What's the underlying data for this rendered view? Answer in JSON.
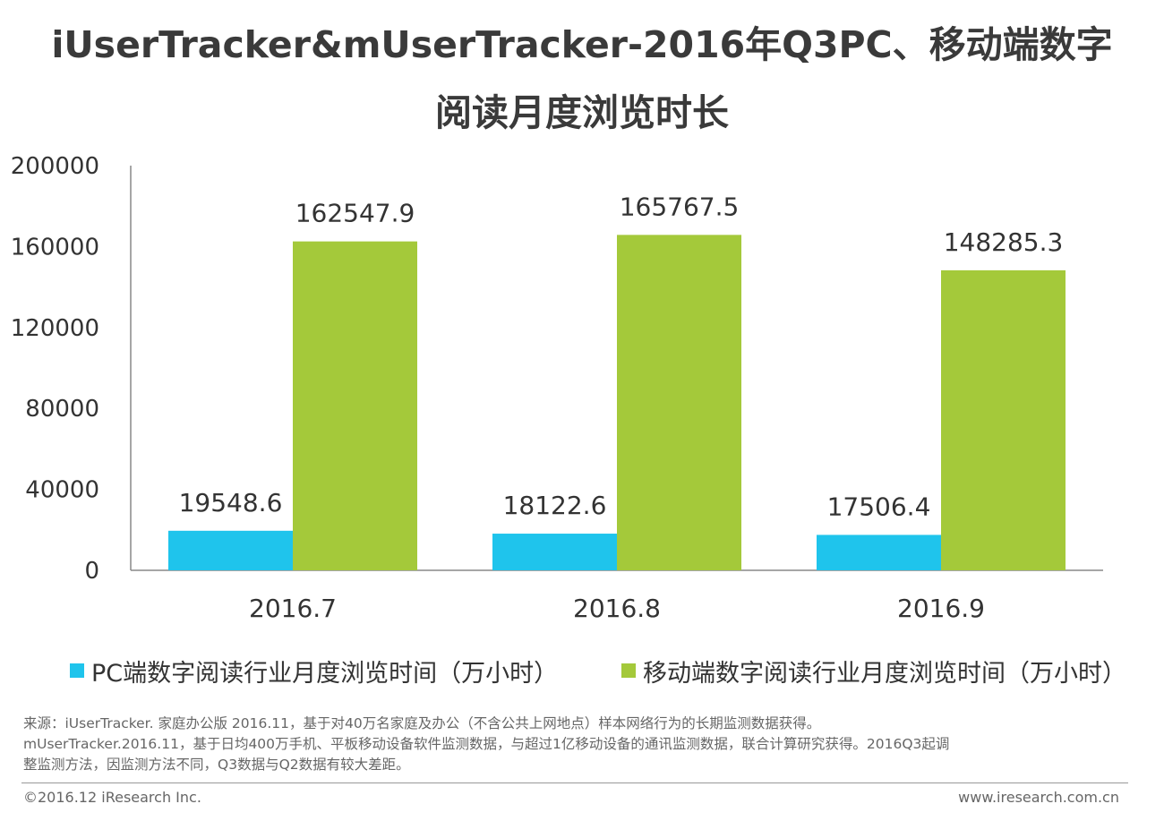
{
  "title_line1": "iUserTracker&mUserTracker-2016年Q3PC、移动端数字",
  "title_line2": "阅读月度浏览时长",
  "chart_data": {
    "type": "bar",
    "title": "iUserTracker&mUserTracker-2016年Q3PC、移动端数字阅读月度浏览时长",
    "categories": [
      "2016.7",
      "2016.8",
      "2016.9"
    ],
    "series": [
      {
        "name": "PC端数字阅读行业月度浏览时间（万小时）",
        "color": "#1fc4ec",
        "values": [
          19548.6,
          18122.6,
          17506.4
        ]
      },
      {
        "name": "移动端数字阅读行业月度浏览时间（万小时）",
        "color": "#a4c93a",
        "values": [
          162547.9,
          165767.5,
          148285.3
        ]
      }
    ],
    "value_labels": [
      [
        "19548.6",
        "18122.6",
        "17506.4"
      ],
      [
        "162547.9",
        "165767.5",
        "148285.3"
      ]
    ],
    "y_ticks": [
      "0",
      "40000",
      "80000",
      "120000",
      "160000",
      "200000"
    ],
    "ylim": [
      0,
      200000
    ],
    "xlabel": "",
    "ylabel": "",
    "legend_position": "bottom"
  },
  "footnote": {
    "line1": "来源：iUserTracker. 家庭办公版 2016.11，基于对40万名家庭及办公（不含公共上网地点）样本网络行为的长期监测数据获得。",
    "line2": "mUserTracker.2016.11，基于日均400万手机、平板移动设备软件监测数据，与超过1亿移动设备的通讯监测数据，联合计算研究获得。2016Q3起调",
    "line3": "整监测方法，因监测方法不同，Q3数据与Q2数据有较大差距。"
  },
  "footer": {
    "copyright": "©2016.12 iResearch Inc.",
    "website": "www.iresearch.com.cn"
  }
}
